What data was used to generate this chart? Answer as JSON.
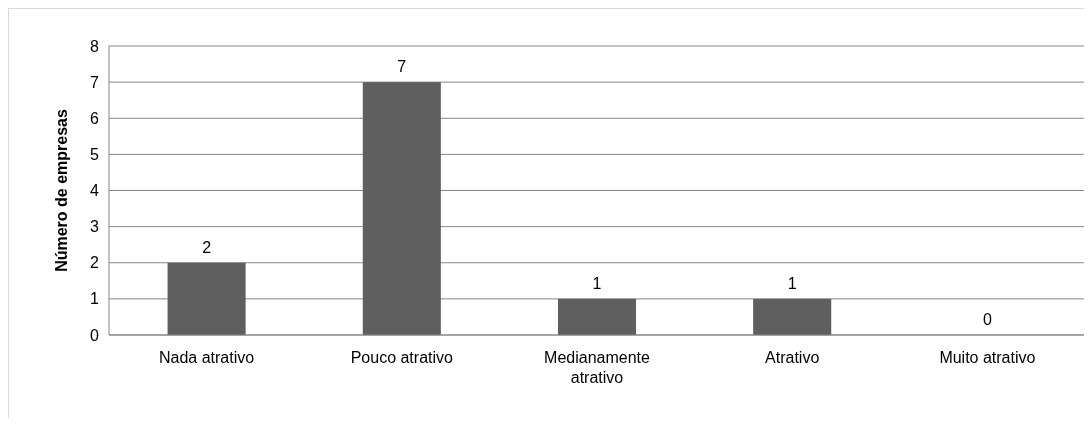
{
  "chart_data": {
    "type": "bar",
    "ylabel": "Número de empresas",
    "categories": [
      "Nada atrativo",
      "Pouco atrativo",
      "Medianamente atrativo",
      "Atrativo",
      "Muito atrativo"
    ],
    "values": [
      2,
      7,
      1,
      1,
      0
    ],
    "color": "#5f5f5f",
    "ylim": [
      0,
      8
    ],
    "yticks": [
      0,
      1,
      2,
      3,
      4,
      5,
      6,
      7,
      8
    ],
    "grid": "y",
    "data_labels": true
  }
}
